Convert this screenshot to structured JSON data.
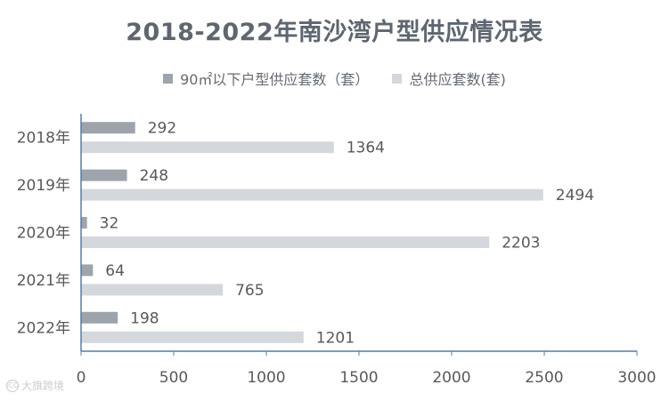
{
  "chart_data": {
    "type": "bar",
    "orientation": "horizontal",
    "title": "2018-2022年南沙湾户型供应情况表",
    "categories": [
      "2018年",
      "2019年",
      "2020年",
      "2021年",
      "2022年"
    ],
    "series": [
      {
        "name": "90㎡以下户型供应套数（套）",
        "values": [
          292,
          248,
          32,
          64,
          198
        ],
        "color": "#9ea4ab"
      },
      {
        "name": "总供应套数(套)",
        "values": [
          1364,
          2494,
          2203,
          765,
          1201
        ],
        "color": "#d4d7dc"
      }
    ],
    "xlim": [
      0,
      3000
    ],
    "xticks": [
      0,
      500,
      1000,
      1500,
      2000,
      2500,
      3000
    ],
    "legend_position": "top",
    "grid": false,
    "data_labels": true
  },
  "watermark": {
    "mark": "ICO",
    "text": "大旗跨境"
  }
}
